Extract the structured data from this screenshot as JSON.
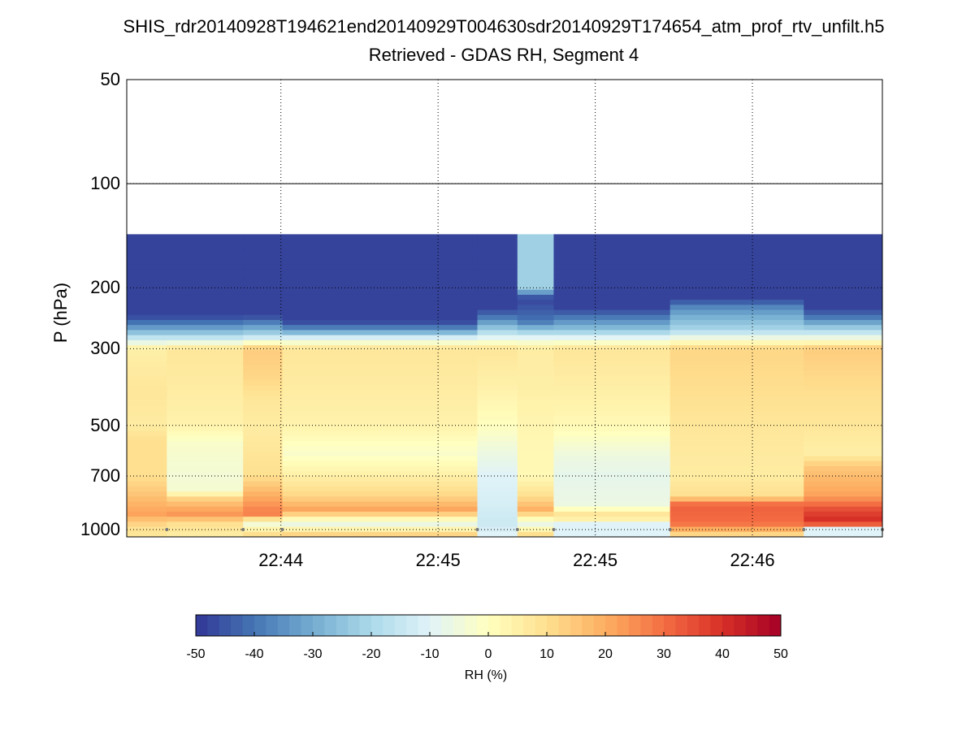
{
  "chart_data": {
    "type": "heatmap",
    "title": "SHIS_rdr20140928T194621end20140929T004630sdr20140929T174654_atm_prof_rtv_unfilt.h5",
    "subtitle": "Retrieved - GDAS RH, Segment 4",
    "ylabel": "P (hPa)",
    "yscale": "log",
    "ylim": [
      1050,
      50
    ],
    "y_ticks": [
      50,
      100,
      200,
      300,
      500,
      700,
      1000
    ],
    "x_tick_labels": [
      "22:44",
      "22:45",
      "22:45",
      "22:46"
    ],
    "x_tick_fractions": [
      0.204,
      0.412,
      0.62,
      0.828
    ],
    "colorbar": {
      "label": "RH (%)",
      "range": [
        -50,
        50
      ],
      "ticks": [
        -50,
        -40,
        -30,
        -20,
        -10,
        0,
        10,
        20,
        30,
        40,
        50
      ],
      "colormap": "RdYlBu_r"
    },
    "grid": true,
    "segments": [
      {
        "x0": 0.0,
        "x1": 0.053,
        "upper_limit_hPa": 140,
        "profile": [
          [
            140,
            -48
          ],
          [
            240,
            -48
          ],
          [
            250,
            -42
          ],
          [
            265,
            -30
          ],
          [
            280,
            -15
          ],
          [
            300,
            5
          ],
          [
            400,
            8
          ],
          [
            500,
            6
          ],
          [
            550,
            10
          ],
          [
            700,
            10
          ],
          [
            800,
            16
          ],
          [
            900,
            22
          ],
          [
            980,
            10
          ],
          [
            1030,
            8
          ]
        ]
      },
      {
        "x0": 0.053,
        "x1": 0.154,
        "upper_limit_hPa": 140,
        "profile": [
          [
            140,
            -48
          ],
          [
            240,
            -48
          ],
          [
            250,
            -42
          ],
          [
            265,
            -30
          ],
          [
            280,
            -15
          ],
          [
            300,
            8
          ],
          [
            400,
            6
          ],
          [
            500,
            4
          ],
          [
            560,
            -2
          ],
          [
            700,
            -4
          ],
          [
            770,
            -3
          ],
          [
            820,
            14
          ],
          [
            900,
            24
          ],
          [
            960,
            10
          ],
          [
            1030,
            6
          ]
        ]
      },
      {
        "x0": 0.154,
        "x1": 0.206,
        "upper_limit_hPa": 140,
        "profile": [
          [
            140,
            -48
          ],
          [
            240,
            -48
          ],
          [
            250,
            -40
          ],
          [
            265,
            -28
          ],
          [
            280,
            -12
          ],
          [
            300,
            14
          ],
          [
            360,
            12
          ],
          [
            420,
            8
          ],
          [
            500,
            6
          ],
          [
            700,
            10
          ],
          [
            800,
            20
          ],
          [
            900,
            28
          ],
          [
            960,
            -5
          ],
          [
            1030,
            10
          ]
        ]
      },
      {
        "x0": 0.206,
        "x1": 0.464,
        "upper_limit_hPa": 140,
        "profile": [
          [
            140,
            -48
          ],
          [
            250,
            -48
          ],
          [
            265,
            -35
          ],
          [
            280,
            -10
          ],
          [
            300,
            8
          ],
          [
            400,
            6
          ],
          [
            500,
            4
          ],
          [
            600,
            -2
          ],
          [
            700,
            5
          ],
          [
            800,
            12
          ],
          [
            880,
            22
          ],
          [
            960,
            -8
          ],
          [
            1030,
            12
          ]
        ]
      },
      {
        "x0": 0.464,
        "x1": 0.517,
        "upper_limit_hPa": 140,
        "profile": [
          [
            140,
            -48
          ],
          [
            230,
            -48
          ],
          [
            245,
            -38
          ],
          [
            265,
            -22
          ],
          [
            280,
            -8
          ],
          [
            300,
            8
          ],
          [
            400,
            4
          ],
          [
            500,
            0
          ],
          [
            600,
            -6
          ],
          [
            700,
            -10
          ],
          [
            850,
            -12
          ],
          [
            960,
            -14
          ],
          [
            1030,
            -10
          ]
        ]
      },
      {
        "x0": 0.517,
        "x1": 0.565,
        "upper_limit_hPa": 140,
        "profile": [
          [
            140,
            -22
          ],
          [
            200,
            -22
          ],
          [
            215,
            -48
          ],
          [
            250,
            -40
          ],
          [
            265,
            -25
          ],
          [
            280,
            -8
          ],
          [
            300,
            6
          ],
          [
            400,
            5
          ],
          [
            500,
            3
          ],
          [
            700,
            2
          ],
          [
            800,
            10
          ],
          [
            880,
            20
          ],
          [
            960,
            -8
          ],
          [
            1030,
            10
          ]
        ]
      },
      {
        "x0": 0.565,
        "x1": 0.719,
        "upper_limit_hPa": 140,
        "profile": [
          [
            140,
            -48
          ],
          [
            230,
            -48
          ],
          [
            245,
            -38
          ],
          [
            265,
            -25
          ],
          [
            280,
            -8
          ],
          [
            300,
            8
          ],
          [
            400,
            5
          ],
          [
            500,
            2
          ],
          [
            600,
            -5
          ],
          [
            700,
            -8
          ],
          [
            850,
            -6
          ],
          [
            920,
            12
          ],
          [
            960,
            -10
          ],
          [
            1030,
            -10
          ]
        ]
      },
      {
        "x0": 0.719,
        "x1": 0.896,
        "upper_limit_hPa": 140,
        "profile": [
          [
            140,
            -48
          ],
          [
            215,
            -48
          ],
          [
            230,
            -35
          ],
          [
            265,
            -20
          ],
          [
            280,
            -5
          ],
          [
            300,
            12
          ],
          [
            400,
            10
          ],
          [
            500,
            8
          ],
          [
            700,
            6
          ],
          [
            800,
            10
          ],
          [
            850,
            32
          ],
          [
            960,
            30
          ],
          [
            1030,
            12
          ]
        ]
      },
      {
        "x0": 0.896,
        "x1": 1.0,
        "upper_limit_hPa": 140,
        "profile": [
          [
            140,
            -48
          ],
          [
            230,
            -48
          ],
          [
            245,
            -38
          ],
          [
            265,
            -20
          ],
          [
            280,
            -5
          ],
          [
            300,
            14
          ],
          [
            400,
            10
          ],
          [
            500,
            8
          ],
          [
            600,
            5
          ],
          [
            660,
            15
          ],
          [
            800,
            22
          ],
          [
            880,
            36
          ],
          [
            960,
            42
          ],
          [
            990,
            -10
          ],
          [
            1030,
            -10
          ]
        ]
      }
    ],
    "boundary_marker_fractions": [
      0.053,
      0.154,
      0.206,
      0.464,
      0.517,
      0.565,
      0.719,
      0.896,
      1.0
    ]
  }
}
